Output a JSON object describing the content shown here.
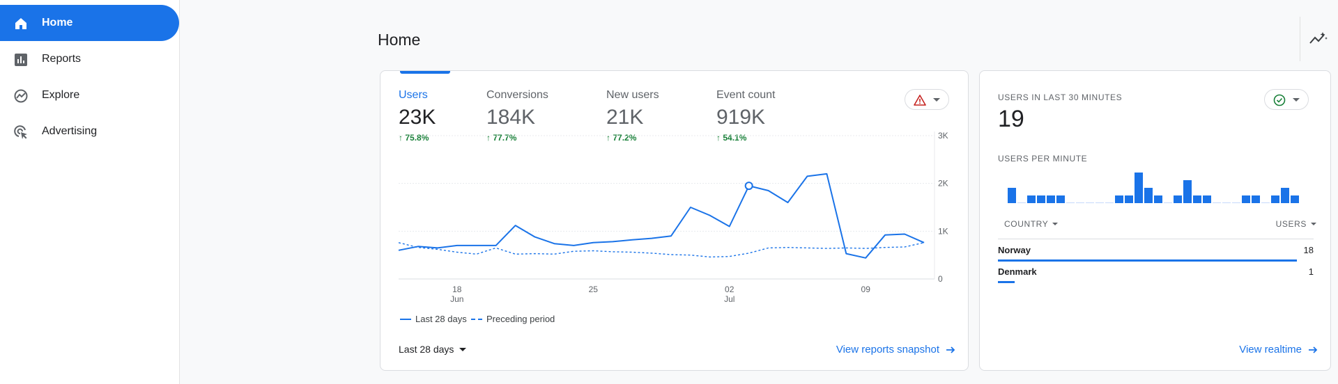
{
  "sidebar": {
    "items": [
      {
        "label": "Home",
        "icon": "home-icon",
        "active": true
      },
      {
        "label": "Reports",
        "icon": "reports-bar-chart-icon",
        "active": false
      },
      {
        "label": "Explore",
        "icon": "explore-trend-icon",
        "active": false
      },
      {
        "label": "Advertising",
        "icon": "advertising-cursor-icon",
        "active": false
      }
    ]
  },
  "header": {
    "title": "Home",
    "insights_icon": "insights-sparkline-icon"
  },
  "overview": {
    "metrics": [
      {
        "label": "Users",
        "value": "23K",
        "change": "75.8%",
        "active": true
      },
      {
        "label": "Conversions",
        "value": "184K",
        "change": "77.7%",
        "active": false
      },
      {
        "label": "New users",
        "value": "21K",
        "change": "77.2%",
        "active": false
      },
      {
        "label": "Event count",
        "value": "919K",
        "change": "54.1%",
        "active": false
      }
    ],
    "anomaly_icon": "warning-triangle-icon",
    "legend": {
      "current": "Last 28 days",
      "previous": "Preceding period"
    },
    "date_range": "Last 28 days",
    "link": "View reports snapshot"
  },
  "chart_data": {
    "type": "line",
    "title": "",
    "xlabel": "",
    "ylabel": "",
    "ylim": [
      0,
      3000
    ],
    "y_ticks": [
      "0",
      "1K",
      "2K",
      "3K"
    ],
    "x_ticks": [
      {
        "label": "18",
        "sub": "Jun",
        "day": 3
      },
      {
        "label": "25",
        "sub": "",
        "day": 10
      },
      {
        "label": "02",
        "sub": "Jul",
        "day": 17
      },
      {
        "label": "09",
        "sub": "",
        "day": 24
      }
    ],
    "grid": true,
    "series": [
      {
        "name": "Last 28 days",
        "style": "solid",
        "values": [
          600,
          680,
          650,
          700,
          700,
          700,
          1120,
          880,
          740,
          700,
          760,
          780,
          820,
          850,
          900,
          1500,
          1330,
          1100,
          1950,
          1850,
          1600,
          2150,
          2200,
          530,
          440,
          920,
          940,
          760
        ]
      },
      {
        "name": "Preceding period",
        "style": "dashed",
        "values": [
          760,
          660,
          620,
          560,
          520,
          650,
          520,
          530,
          520,
          580,
          590,
          570,
          560,
          540,
          510,
          500,
          460,
          470,
          540,
          650,
          660,
          650,
          640,
          650,
          640,
          660,
          670,
          760
        ]
      }
    ],
    "highlight_index": 18
  },
  "realtime": {
    "title": "USERS IN LAST 30 MINUTES",
    "value": "19",
    "status_icon": "check-circle-icon",
    "per_minute_label": "USERS PER MINUTE",
    "per_minute_values": [
      2,
      0,
      1,
      1,
      1,
      1,
      0,
      0,
      0,
      0,
      0,
      1,
      1,
      4,
      2,
      1,
      0,
      1,
      3,
      1,
      1,
      0,
      0,
      0,
      1,
      1,
      0,
      1,
      2,
      1
    ],
    "col_country": "COUNTRY",
    "col_users": "USERS",
    "rows": [
      {
        "country": "Norway",
        "users": "18",
        "share": 0.947
      },
      {
        "country": "Denmark",
        "users": "1",
        "share": 0.053
      }
    ],
    "link": "View realtime"
  },
  "colors": {
    "accent": "#1a73e8",
    "positive": "#188038",
    "warning": "#c5221f"
  }
}
